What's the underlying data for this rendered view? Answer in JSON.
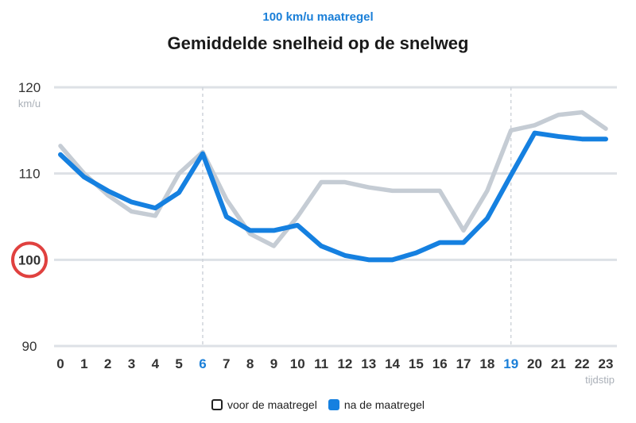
{
  "chart_data": {
    "type": "line",
    "subtitle": "100 km/u maatregel",
    "title": "Gemiddelde snelheid op de snelweg",
    "ylabel": "km/u",
    "xlabel": "tijdstip",
    "ylim": [
      90,
      120
    ],
    "yticks": [
      "90",
      "100",
      "110",
      "120"
    ],
    "highlighted_ytick": "100",
    "x": [
      "0",
      "1",
      "2",
      "3",
      "4",
      "5",
      "6",
      "7",
      "8",
      "9",
      "10",
      "11",
      "12",
      "13",
      "14",
      "15",
      "16",
      "17",
      "18",
      "19",
      "20",
      "21",
      "22",
      "23"
    ],
    "highlighted_x": [
      "6",
      "19"
    ],
    "series": [
      {
        "name": "voor de maatregel",
        "color": "#c5ccd4",
        "values": [
          113.2,
          110,
          107.5,
          105.6,
          105.1,
          110,
          112.5,
          107,
          103,
          101.6,
          105,
          109,
          109,
          108.4,
          108,
          108,
          108,
          103.4,
          108,
          115,
          115.6,
          116.8,
          117.1,
          115.2
        ]
      },
      {
        "name": "na de maatregel",
        "color": "#1580e0",
        "values": [
          112.2,
          109.6,
          108,
          106.7,
          106,
          107.8,
          112.3,
          105,
          103.4,
          103.4,
          104,
          101.6,
          100.5,
          100,
          100,
          100.8,
          102,
          102,
          104.8,
          109.8,
          114.7,
          114.3,
          114,
          114
        ]
      }
    ],
    "legend": "bottom"
  }
}
